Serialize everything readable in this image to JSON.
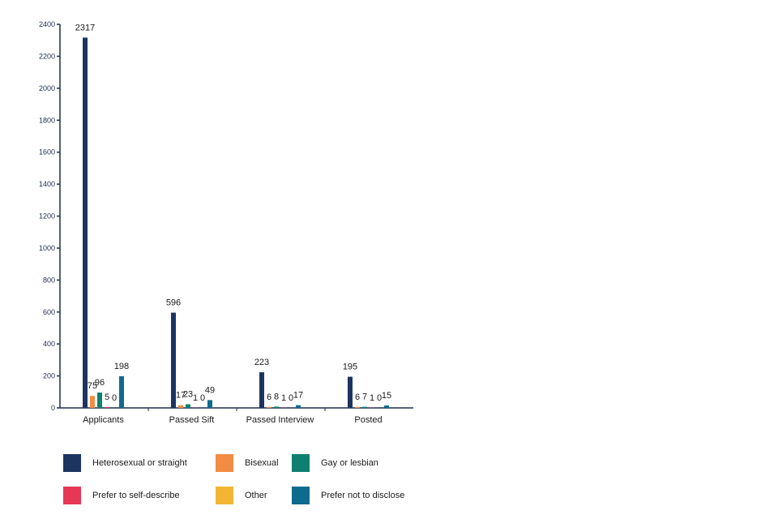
{
  "chart_data": {
    "type": "bar",
    "categories": [
      "Applicants",
      "Passed Sift",
      "Passed Interview",
      "Posted"
    ],
    "series": [
      {
        "name": "Heterosexual or straight",
        "color": "#1d3461",
        "values": [
          2317,
          596,
          223,
          195
        ]
      },
      {
        "name": "Bisexual",
        "color": "#f28c44",
        "values": [
          75,
          17,
          6,
          6
        ]
      },
      {
        "name": "Gay or lesbian",
        "color": "#0f8070",
        "values": [
          96,
          23,
          8,
          7
        ]
      },
      {
        "name": "Prefer to self-describe",
        "color": "#e63757",
        "values": [
          5,
          1,
          1,
          1
        ]
      },
      {
        "name": "Other",
        "color": "#f2b634",
        "values": [
          0,
          0,
          0,
          0
        ]
      },
      {
        "name": "Prefer not to disclose",
        "color": "#0e6b8e",
        "values": [
          198,
          49,
          17,
          15
        ]
      }
    ],
    "yticks": [
      0,
      200,
      400,
      600,
      800,
      1000,
      1200,
      1400,
      1600,
      1800,
      2000,
      2200,
      2400
    ],
    "ylim": [
      0,
      2400
    ],
    "grid": false,
    "legend_position": "bottom"
  }
}
